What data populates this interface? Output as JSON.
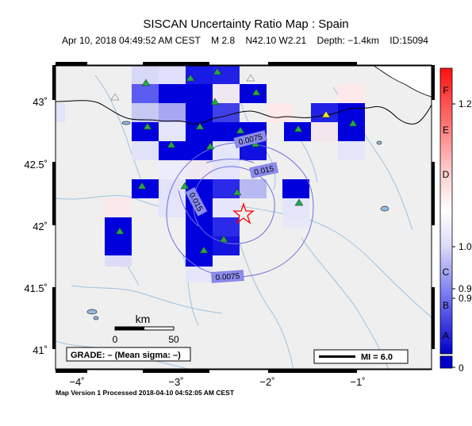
{
  "header": {
    "title": "SISCAN Uncertainty Ratio Map : Spain",
    "date": "Apr 10, 2018 04:49:52 AM CEST",
    "magnitude": "M 2.8",
    "location": "N42.10 W2.21",
    "depth": "Depth: −1.4km",
    "event_id": "ID:15094"
  },
  "axes": {
    "x_ticks": [
      "−4˚",
      "−3˚",
      "−2˚",
      "−1˚"
    ],
    "y_ticks": [
      "43˚",
      "42.5˚",
      "42˚",
      "41.5˚",
      "41˚"
    ]
  },
  "colorbar": {
    "grades": [
      "F",
      "E",
      "D",
      "C",
      "B",
      "A"
    ],
    "values": [
      "1.2",
      "1.0",
      "0.9",
      "0.9",
      "0"
    ],
    "colors": {
      "high": "#ff1010",
      "mid": "#ffffff",
      "low": "#0000cc"
    }
  },
  "scalebar": {
    "unit": "km",
    "labels": [
      "0",
      "50"
    ]
  },
  "grade_box": {
    "text": "GRADE: – (Mean sigma: –)"
  },
  "legend": {
    "label": "MI = 6.0"
  },
  "contours": [
    "0.0075",
    "0.015",
    "0.015",
    "0.0075"
  ],
  "epicenter": {
    "lon": -2.21,
    "lat": 42.1
  },
  "footer": {
    "text": "Map Version 1 Processed 2018-04-10 04:52:05 AM CEST"
  },
  "colors": {
    "land": "#efefef",
    "border": "#000000",
    "rivers": "#9fc2e0",
    "water": "#8fbbe0",
    "contour": "#6f6fe0"
  }
}
